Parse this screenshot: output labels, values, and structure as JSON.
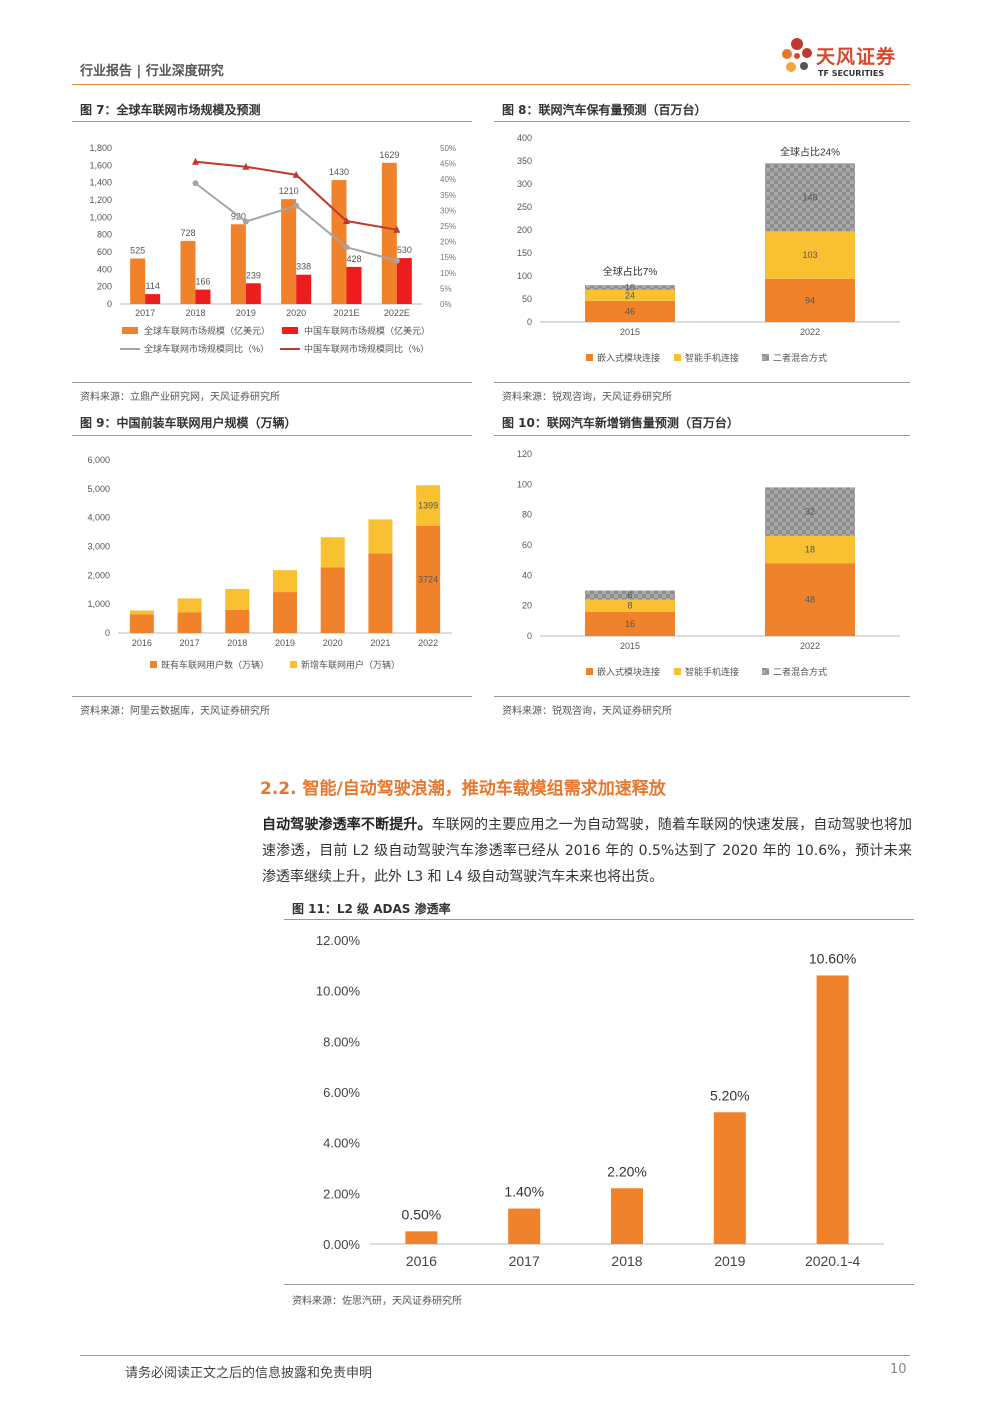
{
  "header": {
    "left": "行业报告 | 行业深度研究",
    "logo_cn": "天风证券",
    "logo_en": "TF SECURITIES"
  },
  "fig7": {
    "title": "图 7：全球车联网市场规模及预测",
    "source": "资料来源：立鼎产业研究网，天风证券研究所",
    "legend": [
      "全球车联网市场规模（亿美元）",
      "中国车联网市场规模（亿美元）",
      "全球车联网市场规模同比（%）",
      "中国车联网市场规模同比（%）"
    ]
  },
  "fig8": {
    "title": "图 8：联网汽车保有量预测（百万台）",
    "source": "资料来源：锐观咨询，天风证券研究所",
    "legend": [
      "嵌入式模块连接",
      "智能手机连接",
      "二者混合方式"
    ],
    "annotations": [
      "全球占比7%",
      "全球占比24%"
    ]
  },
  "fig9": {
    "title": "图 9：中国前装车联网用户规模（万辆）",
    "source": "资料来源：阿里云数据库，天风证券研究所",
    "legend": [
      "既有车联网用户数（万辆）",
      "新增车联网用户（万辆）"
    ]
  },
  "fig10": {
    "title": "图 10：联网汽车新增销售量预测（百万台）",
    "source": "资料来源：锐观咨询，天风证券研究所",
    "legend": [
      "嵌入式模块连接",
      "智能手机连接",
      "二者混合方式"
    ]
  },
  "fig11": {
    "title": "图 11：L2 级 ADAS 渗透率",
    "source": "资料来源：佐思汽研，天风证券研究所"
  },
  "section": {
    "title": "2.2. 智能/自动驾驶浪潮，推动车载模组需求加速释放",
    "lead": "自动驾驶渗透率不断提升。",
    "body": "车联网的主要应用之一为自动驾驶，随着车联网的快速发展，自动驾驶也将加速渗透，目前 L2 级自动驾驶汽车渗透率已经从 2016 年的 0.5%达到了 2020 年的 10.6%，预计未来渗透率继续上升，此外 L3 和 L4 级自动驾驶汽车未来也将出货。"
  },
  "footer": {
    "disclaimer": "请务必阅读正文之后的信息披露和免责申明",
    "page": "10"
  },
  "colors": {
    "orange": "#f0822b",
    "red": "#ee1c1c",
    "yellow": "#f9c131",
    "grey": "#9e9e9e",
    "accent": "#e0893a"
  },
  "chart_data": [
    {
      "type": "bar",
      "id": "fig7",
      "categories": [
        "2017",
        "2018",
        "2019",
        "2020",
        "2021E",
        "2022E"
      ],
      "series": [
        {
          "name": "全球车联网市场规模（亿美元）",
          "values": [
            525,
            728,
            920,
            1210,
            1430,
            1629
          ]
        },
        {
          "name": "中国车联网市场规模（亿美元）",
          "values": [
            114,
            166,
            239,
            338,
            428,
            530
          ]
        },
        {
          "name": "全球车联网市场规模同比（%）",
          "type": "line",
          "axis": "right",
          "values": [
            null,
            38.7,
            26.4,
            31.5,
            18.2,
            13.9
          ]
        },
        {
          "name": "中国车联网市场规模同比（%）",
          "type": "line",
          "axis": "right",
          "values": [
            null,
            45.6,
            44.0,
            41.4,
            26.6,
            23.8
          ]
        }
      ],
      "ylim": [
        0,
        1800
      ],
      "yticks": [
        "0",
        "200",
        "400",
        "600",
        "800",
        "1,000",
        "1,200",
        "1,400",
        "1,600",
        "1,800"
      ],
      "y2lim": [
        0,
        50
      ],
      "y2ticks": [
        "0%",
        "5%",
        "10%",
        "15%",
        "20%",
        "25%",
        "30%",
        "35%",
        "40%",
        "45%",
        "50%"
      ]
    },
    {
      "type": "bar",
      "id": "fig8",
      "stacked": true,
      "categories": [
        "2015",
        "2022"
      ],
      "series": [
        {
          "name": "嵌入式模块连接",
          "values": [
            46,
            94
          ]
        },
        {
          "name": "智能手机连接",
          "values": [
            24,
            103
          ]
        },
        {
          "name": "二者混合方式",
          "values": [
            10,
            148
          ]
        }
      ],
      "ylim": [
        0,
        400
      ],
      "yticks": [
        "0",
        "50",
        "100",
        "150",
        "200",
        "250",
        "300",
        "350",
        "400"
      ]
    },
    {
      "type": "bar",
      "id": "fig9",
      "stacked": true,
      "categories": [
        "2016",
        "2017",
        "2018",
        "2019",
        "2020",
        "2021",
        "2022"
      ],
      "series": [
        {
          "name": "既有车联网用户数（万辆）",
          "values": [
            650,
            720,
            800,
            1420,
            2280,
            2760,
            3724
          ]
        },
        {
          "name": "新增车联网用户（万辆）",
          "values": [
            130,
            480,
            730,
            760,
            1040,
            1180,
            1399
          ]
        }
      ],
      "ylim": [
        0,
        6000
      ],
      "yticks": [
        "0",
        "1,000",
        "2,000",
        "3,000",
        "4,000",
        "5,000",
        "6,000"
      ]
    },
    {
      "type": "bar",
      "id": "fig10",
      "stacked": true,
      "categories": [
        "2015",
        "2022"
      ],
      "series": [
        {
          "name": "嵌入式模块连接",
          "values": [
            16,
            48
          ]
        },
        {
          "name": "智能手机连接",
          "values": [
            8,
            18
          ]
        },
        {
          "name": "二者混合方式",
          "values": [
            6,
            32
          ]
        }
      ],
      "ylim": [
        0,
        120
      ],
      "yticks": [
        "0",
        "20",
        "40",
        "60",
        "80",
        "100",
        "120"
      ]
    },
    {
      "type": "bar",
      "id": "fig11",
      "categories": [
        "2016",
        "2017",
        "2018",
        "2019",
        "2020.1-4"
      ],
      "values": [
        0.5,
        1.4,
        2.2,
        5.2,
        10.6
      ],
      "labels": [
        "0.50%",
        "1.40%",
        "2.20%",
        "5.20%",
        "10.60%"
      ],
      "ylim": [
        0,
        12
      ],
      "yticks": [
        "0.00%",
        "2.00%",
        "4.00%",
        "6.00%",
        "8.00%",
        "10.00%",
        "12.00%"
      ]
    }
  ]
}
